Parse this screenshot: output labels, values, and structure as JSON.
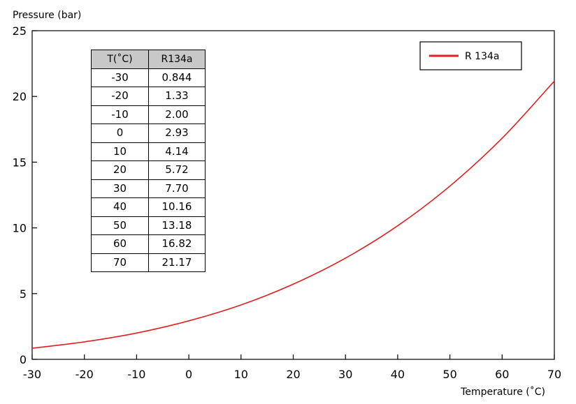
{
  "chart_data": {
    "type": "line",
    "title": "",
    "ylabel": "Pressure (bar)",
    "xlabel": "Temperature (˚C)",
    "xlim": [
      -30,
      70
    ],
    "ylim": [
      0,
      25
    ],
    "x_ticks": [
      "-30",
      "-20",
      "-10",
      "0",
      "10",
      "20",
      "30",
      "40",
      "50",
      "60",
      "70"
    ],
    "y_ticks": [
      "0",
      "5",
      "10",
      "15",
      "20",
      "25"
    ],
    "grid": false,
    "legend_position": "top-right",
    "series": [
      {
        "name": "R 134a",
        "color": "#e02020",
        "x": [
          -30,
          -20,
          -10,
          0,
          10,
          20,
          30,
          40,
          50,
          60,
          70
        ],
        "y": [
          0.844,
          1.33,
          2.0,
          2.93,
          4.14,
          5.72,
          7.7,
          10.16,
          13.18,
          16.82,
          21.17
        ]
      }
    ],
    "table": {
      "headers": [
        "T(˚C)",
        "R134a"
      ],
      "rows": [
        [
          "-30",
          "0.844"
        ],
        [
          "-20",
          "1.33"
        ],
        [
          "-10",
          "2.00"
        ],
        [
          "0",
          "2.93"
        ],
        [
          "10",
          "4.14"
        ],
        [
          "20",
          "5.72"
        ],
        [
          "30",
          "7.70"
        ],
        [
          "40",
          "10.16"
        ],
        [
          "50",
          "13.18"
        ],
        [
          "60",
          "16.82"
        ],
        [
          "70",
          "21.17"
        ]
      ]
    }
  }
}
